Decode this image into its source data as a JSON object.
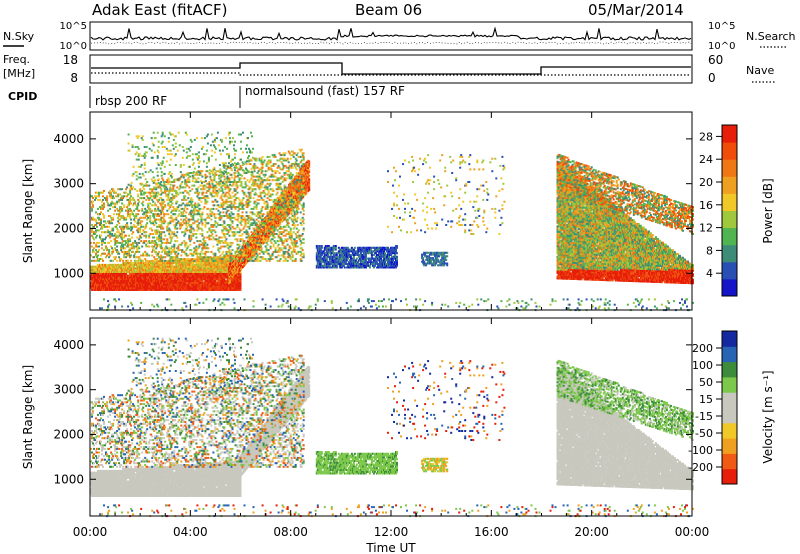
{
  "header": {
    "station": "Adak East (fitACF)",
    "beam": "Beam 06",
    "date": "05/Mar/2014"
  },
  "labels": {
    "nsky": "N.Sky",
    "freq_line1": "Freq.",
    "freq_line2": "[MHz]",
    "cpid": "CPID",
    "nsearch": "N.Search",
    "nave": "Nave",
    "x_axis": "Time UT",
    "y_axis_power": "Slant Range [km]",
    "y_axis_velocity": "Slant Range [km]",
    "power_colorbar": "Power [dB]",
    "velocity_colorbar": "Velocity [m s⁻¹]"
  },
  "noise_panel": {
    "left_ticks": [
      "10^5",
      "10^0"
    ],
    "right_ticks": [
      "10^5",
      "10^0"
    ]
  },
  "freq_panel": {
    "left_ticks": [
      "18",
      "8"
    ],
    "right_ticks": [
      "60",
      "0"
    ]
  },
  "cpid_panel": {
    "segments": [
      {
        "label": "rbsp 200 RF",
        "start_hour": 0
      },
      {
        "label": "normalsound (fast) 157 RF",
        "start_hour": 6
      }
    ]
  },
  "colors": {
    "power": [
      "#1414c8",
      "#2850b4",
      "#3c8c78",
      "#50b450",
      "#a0c83c",
      "#f0c828",
      "#f0a020",
      "#f07814",
      "#f04c0a",
      "#e61e0a"
    ],
    "velocity": [
      "#e61e0a",
      "#f05a14",
      "#f0a020",
      "#f0c828",
      "#c8c8be",
      "#c8c8be",
      "#7cc84a",
      "#3c8c3c",
      "#2864b4",
      "#1428a0"
    ]
  },
  "chart_data": [
    {
      "type": "heatmap",
      "title": "",
      "xlabel": "Time UT",
      "ylabel": "Slant Range [km]",
      "x_ticks": [
        "00:00",
        "04:00",
        "08:00",
        "12:00",
        "16:00",
        "20:00",
        "00:00"
      ],
      "x_range_hours": [
        0,
        24
      ],
      "y_ticks": [
        1000,
        2000,
        3000,
        4000
      ],
      "y_range_km": [
        180,
        4600
      ],
      "colorbar_label": "Power [dB]",
      "colorbar_ticks": [
        4,
        8,
        12,
        16,
        20,
        24,
        28
      ],
      "colorbar_range": [
        0,
        30
      ]
    },
    {
      "type": "heatmap",
      "title": "",
      "xlabel": "Time UT",
      "ylabel": "Slant Range [km]",
      "x_ticks": [
        "00:00",
        "04:00",
        "08:00",
        "12:00",
        "16:00",
        "20:00",
        "00:00"
      ],
      "x_range_hours": [
        0,
        24
      ],
      "y_ticks": [
        1000,
        2000,
        3000,
        4000
      ],
      "y_range_km": [
        180,
        4600
      ],
      "colorbar_label": "Velocity [m s⁻¹]",
      "colorbar_ticks": [
        200,
        100,
        50,
        15,
        -15,
        -50,
        -100,
        -200
      ]
    }
  ]
}
